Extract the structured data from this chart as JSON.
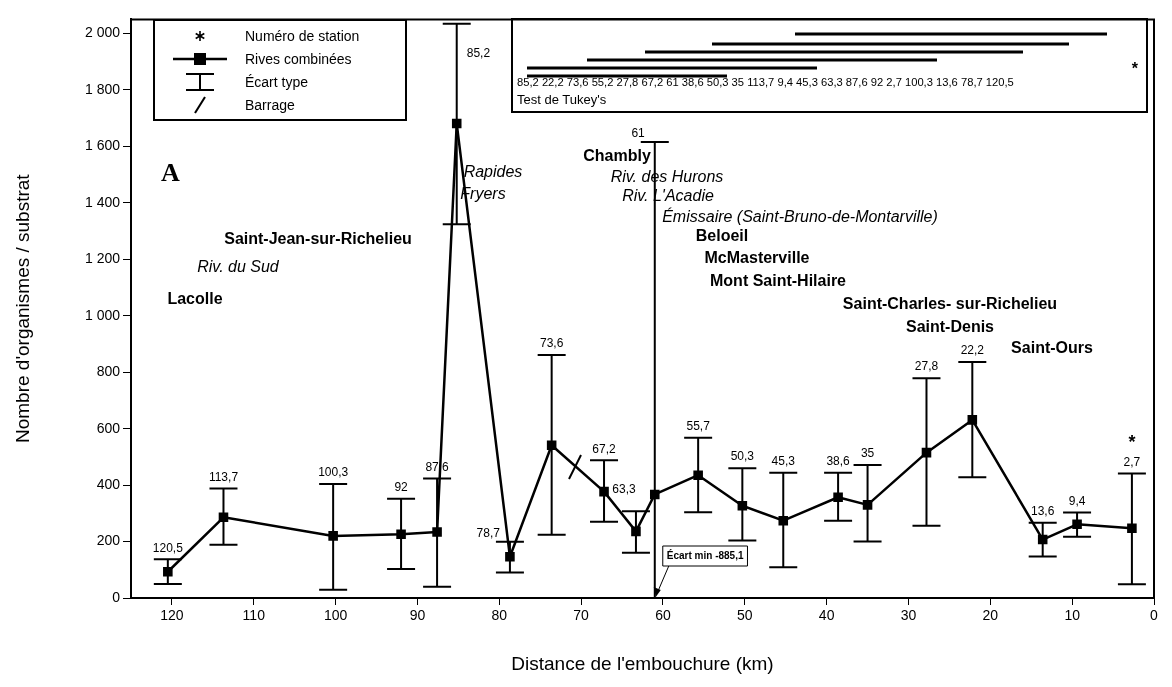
{
  "chart_data": {
    "type": "line",
    "xlabel": "Distance de l'embouchure (km)",
    "ylabel": "Nombre d'organismes / substrat",
    "x": [
      120.5,
      113.7,
      100.3,
      92,
      87.6,
      85.2,
      78.7,
      73.6,
      67.2,
      63.3,
      61,
      55.7,
      50.3,
      45.3,
      38.6,
      35,
      27.8,
      22.2,
      13.6,
      9.4,
      2.7
    ],
    "series": [
      {
        "name": "Rives combinées",
        "color": "#000000",
        "values": [
          93,
          286,
          220,
          226,
          234,
          1681,
          146,
          541,
          377,
          236,
          367,
          435,
          327,
          274,
          357,
          330,
          515,
          631,
          207,
          261,
          247
        ],
        "errors": [
          [
            50,
            137
          ],
          [
            189,
            388
          ],
          [
            29,
            404
          ],
          [
            103,
            352
          ],
          [
            40,
            423
          ],
          [
            1324,
            2035
          ],
          [
            90,
            199
          ],
          [
            224,
            861
          ],
          [
            270,
            488
          ],
          [
            160,
            307
          ],
          [
            0,
            1616
          ],
          [
            304,
            568
          ],
          [
            204,
            460
          ],
          [
            109,
            444
          ],
          [
            274,
            444
          ],
          [
            200,
            471
          ],
          [
            256,
            779
          ],
          [
            428,
            836
          ],
          [
            147,
            267
          ],
          [
            217,
            303
          ],
          [
            49,
            441
          ]
        ]
      }
    ],
    "xlim": [
      125,
      0
    ],
    "xticks": [
      120,
      110,
      100,
      90,
      80,
      70,
      60,
      50,
      40,
      30,
      20,
      10,
      0
    ],
    "ylim": [
      0,
      2050
    ],
    "yticks": [
      0,
      200,
      400,
      600,
      800,
      {
        "value": 1000,
        "label": "1 000"
      },
      {
        "value": 1200,
        "label": "1 200"
      },
      {
        "value": 1400,
        "label": "1 400"
      },
      {
        "value": 1600,
        "label": "1 600"
      },
      {
        "value": 1800,
        "label": "1 800"
      },
      {
        "value": 2000,
        "label": "2 000"
      }
    ],
    "grid": false,
    "legend": "top left",
    "marker": "square",
    "line_style": "solid",
    "annotations": [
      "Numéro de station",
      "Écart type",
      "Barrage",
      "A",
      "Test de Tukey's",
      "85,2 22,2 73,6 55,2 27,8 67,2 61 38,6 50,3 35 113,7 9,4 45,3 63,3 87,6 92 2,7 100,3 13,6 78,7 120,5",
      "Lacolle",
      "Riv. du Sud",
      "Saint-Jean-sur-Richelieu",
      "Rapides",
      "Fryers",
      "Chambly",
      "Riv. des Hurons",
      "Riv. L'Acadie",
      "Émissaire (Saint-Bruno-de-Montarville)",
      "Beloeil",
      "McMasterville",
      "Mont Saint-Hilaire",
      "Saint-Charles- sur-Richelieu",
      "Saint-Denis",
      "Saint-Ours",
      "120,5",
      "113,7",
      "100,3",
      "92",
      "87,6",
      "85,2",
      "78,7",
      "73,6",
      "67,2",
      "63,3",
      "61",
      "55,7",
      "50,3",
      "45,3",
      "38,6",
      "35",
      "27,8",
      "22,2",
      "13,6",
      "9,4",
      "2,7",
      "*",
      {
        "text": "Écart min -885,1",
        "x": 61,
        "y": 0
      }
    ]
  }
}
